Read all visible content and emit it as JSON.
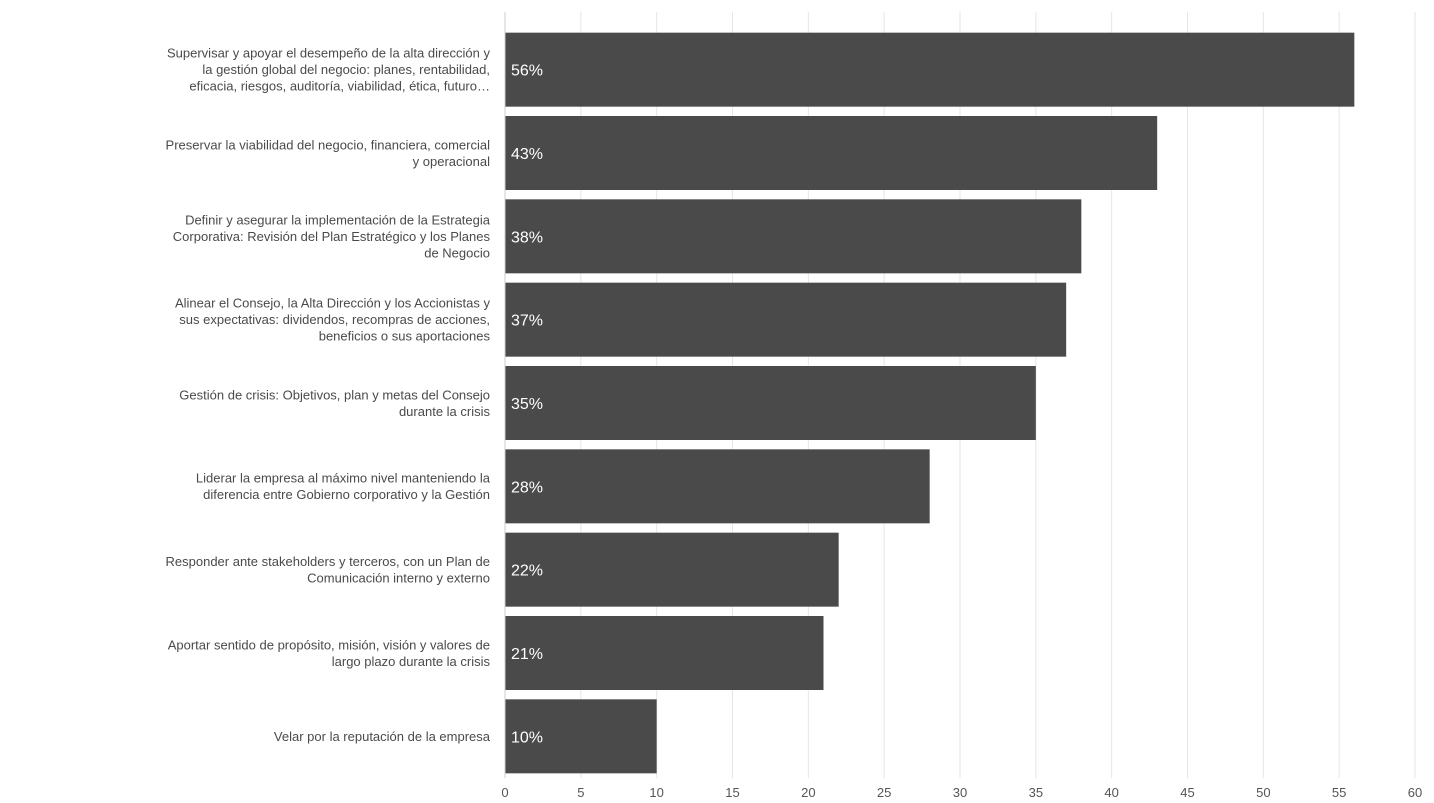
{
  "chart_data": {
    "type": "bar",
    "orientation": "horizontal",
    "categories": [
      "Supervisar y apoyar el desempeño de la alta dirección y la gestión global del negocio: planes, rentabilidad, eficacia, riesgos, auditoría, viabilidad, ética, futuro…",
      "Preservar la viabilidad del negocio, financiera, comercial y operacional",
      "Definir y asegurar la implementación de la Estrategia Corporativa: Revisión del Plan Estratégico y los Planes de Negocio",
      "Alinear el Consejo, la Alta Dirección y los Accionistas y sus expectativas: dividendos, recompras de acciones, beneficios o sus aportaciones",
      "Gestión de crisis: Objetivos, plan y metas del Consejo durante la crisis",
      "Liderar la empresa al máximo nivel manteniendo la diferencia entre Gobierno corporativo y la Gestión",
      "Responder ante stakeholders y terceros, con un Plan de Comunicación interno y externo",
      "Aportar sentido de propósito, misión, visión y valores de largo plazo durante la crisis",
      "Velar por la reputación de la empresa"
    ],
    "category_lines": [
      [
        "Supervisar y apoyar el desempeño de la alta dirección y",
        "la gestión global del negocio: planes, rentabilidad,",
        "eficacia, riesgos, auditoría, viabilidad, ética, futuro…"
      ],
      [
        "Preservar la viabilidad del negocio, financiera, comercial",
        "y operacional"
      ],
      [
        "Definir y asegurar la implementación de la Estrategia",
        "Corporativa: Revisión del Plan Estratégico y los Planes",
        "de Negocio"
      ],
      [
        "Alinear el Consejo, la Alta Dirección y los Accionistas y",
        "sus expectativas: dividendos, recompras de acciones,",
        "beneficios o sus aportaciones"
      ],
      [
        "Gestión de crisis: Objetivos, plan y metas del Consejo",
        "durante la crisis"
      ],
      [
        "Liderar la empresa al máximo nivel manteniendo la",
        "diferencia entre Gobierno corporativo y la Gestión"
      ],
      [
        "Responder ante stakeholders y terceros, con un Plan de",
        "Comunicación interno y externo"
      ],
      [
        "Aportar sentido de propósito, misión, visión y valores de",
        "largo plazo durante la crisis"
      ],
      [
        "Velar por la reputación de la empresa"
      ]
    ],
    "values": [
      56,
      43,
      38,
      37,
      35,
      28,
      22,
      21,
      10
    ],
    "value_labels": [
      "56%",
      "43%",
      "38%",
      "37%",
      "35%",
      "28%",
      "22%",
      "21%",
      "10%"
    ],
    "xlim": [
      0,
      60
    ],
    "xticks": [
      0,
      5,
      10,
      15,
      20,
      25,
      30,
      35,
      40,
      45,
      50,
      55,
      60
    ],
    "xtick_labels": [
      "0",
      "5",
      "10",
      "15",
      "20",
      "25",
      "30",
      "35",
      "40",
      "45",
      "50",
      "55",
      "60"
    ],
    "title": "",
    "xlabel": "",
    "ylabel": "",
    "grid": true,
    "legend": "none",
    "colors": {
      "bar": "#4a4a4a",
      "bar_label": "#ffffff",
      "grid": "#e6e6e6",
      "axis": "#cccccc",
      "text": "#4a4a4a"
    }
  }
}
